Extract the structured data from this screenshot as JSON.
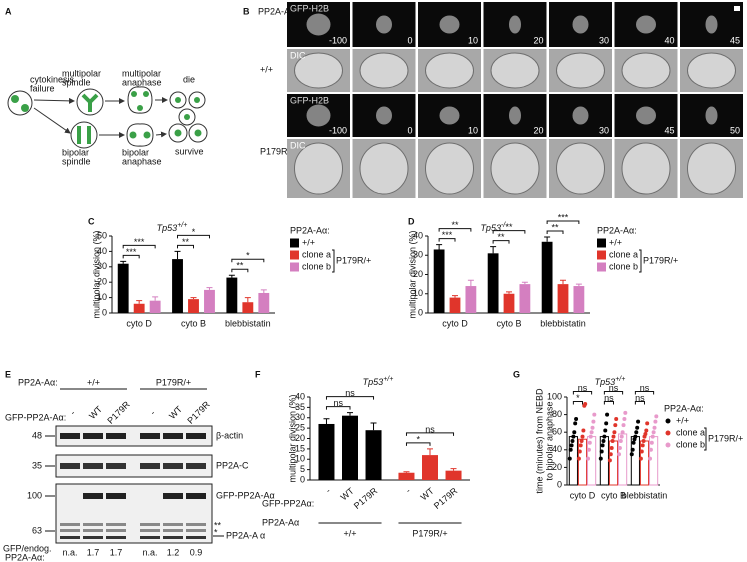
{
  "panel_labels": [
    "A",
    "B",
    "C",
    "D",
    "E",
    "F",
    "G"
  ],
  "diagram": {
    "nodes": [
      [
        "cytokinesis",
        "failure"
      ],
      [
        "multipolar",
        "spindle"
      ],
      [
        "multipolar",
        "anaphase"
      ],
      [
        "die"
      ],
      [
        "bipolar",
        "spindle"
      ],
      [
        "bipolar",
        "anaphase"
      ],
      [
        "survive"
      ]
    ]
  },
  "microscopy": {
    "genotype_title": "PP2A-Aα:",
    "channels": [
      "GFP-H2B",
      "DIC"
    ],
    "rows": [
      {
        "genotype": "+/+",
        "times": [
          -100,
          0,
          10,
          20,
          30,
          40,
          45
        ]
      },
      {
        "genotype": "P179R/+",
        "times": [
          -100,
          0,
          10,
          20,
          30,
          45,
          50
        ]
      }
    ]
  },
  "blot": {
    "genotype_title": "PP2A-Aα:",
    "genotypes": [
      "+/+",
      "P179R/+"
    ],
    "transgene_title": "GFP-PP2A-Aα:",
    "lanes": [
      "-",
      "WT",
      "P179R",
      "-",
      "WT",
      "P179R"
    ],
    "markers": [
      48,
      35,
      100,
      63
    ],
    "bands": [
      "β-actin",
      "PP2A-C",
      "GFP-PP2A-Aα",
      "PP2A-A α"
    ],
    "band_marks": [
      "**",
      "*"
    ],
    "ratio_title": [
      "GFP/endog.",
      "PP2A-Aα:"
    ],
    "ratios": [
      "n.a.",
      1.7,
      1.7,
      "n.a.",
      1.2,
      0.9
    ]
  },
  "chart_data": [
    {
      "type": "bar",
      "title": "Tp53",
      "title_superscript": "+/+",
      "ylabel": "multipolar division (%)",
      "categories": [
        "cyto D",
        "cyto B",
        "blebbistatin"
      ],
      "series": [
        {
          "name": "+/+",
          "color": "#000000",
          "values": [
            32,
            35,
            23
          ],
          "errors": [
            1.5,
            5,
            1.5
          ]
        },
        {
          "name": "clone a",
          "color": "#e0352b",
          "values": [
            6,
            9,
            7
          ],
          "errors": [
            2,
            1,
            3
          ]
        },
        {
          "name": "clone b",
          "color": "#d47fc0",
          "values": [
            8,
            15,
            13
          ],
          "errors": [
            2.5,
            1.5,
            2
          ]
        }
      ],
      "ylim": [
        0,
        50
      ],
      "yticks": [
        0,
        10,
        20,
        30,
        40,
        50
      ],
      "legend_title": "PP2A-Aα:",
      "legend_group": "P179R/+",
      "significance": [
        "***",
        "***",
        "**",
        "*",
        "**",
        "*"
      ]
    },
    {
      "type": "bar",
      "title": "Tp53",
      "title_superscript": "-/-",
      "ylabel": "multipolar division (%)",
      "categories": [
        "cyto D",
        "cyto B",
        "blebbistatin"
      ],
      "series": [
        {
          "name": "+/+",
          "color": "#000000",
          "values": [
            33,
            31,
            37
          ],
          "errors": [
            2.5,
            3.5,
            2.5
          ]
        },
        {
          "name": "clone a",
          "color": "#e0352b",
          "values": [
            8,
            10,
            15
          ],
          "errors": [
            1,
            1,
            2
          ]
        },
        {
          "name": "clone b",
          "color": "#d47fc0",
          "values": [
            14,
            15,
            14
          ],
          "errors": [
            3,
            1,
            1
          ]
        }
      ],
      "ylim": [
        0,
        40
      ],
      "yticks": [
        0,
        10,
        20,
        30,
        40
      ],
      "legend_title": "PP2A-Aα:",
      "legend_group": "P179R/+",
      "significance": [
        "***",
        "**",
        "**",
        "**",
        "**",
        "***"
      ]
    },
    {
      "type": "bar",
      "title": "Tp53",
      "title_superscript": "+/+",
      "ylabel": "multipolar division (%)",
      "categories": [
        "-",
        "WT",
        "P179R"
      ],
      "category_title": "GFP-PP2Aα:",
      "group_title": "PP2A-Aα",
      "series": [
        {
          "name": "+/+",
          "color": "#000000",
          "values": [
            27,
            31,
            24
          ],
          "errors": [
            2.5,
            1.5,
            3.5
          ]
        },
        {
          "name": "P179R/+",
          "color": "#e0352b",
          "values": [
            3.5,
            12,
            4.5
          ],
          "errors": [
            0.5,
            3,
            1
          ]
        }
      ],
      "ylim": [
        0,
        40
      ],
      "yticks": [
        0,
        5,
        10,
        15,
        20,
        25,
        30,
        35,
        40
      ],
      "significance": [
        "ns",
        "ns",
        "*",
        "ns"
      ]
    },
    {
      "type": "dotplot",
      "title": "Tp53",
      "title_superscript": "+/+",
      "ylabel": [
        "time (minutes) from NEBD",
        "to bipolar anaphase"
      ],
      "categories": [
        "cyto D",
        "cyto B",
        "blebbistatin"
      ],
      "series": [
        {
          "name": "+/+",
          "color": "#000000",
          "values": [
            55,
            55,
            55
          ],
          "points": [
            [
              30,
              40,
              45,
              50,
              55,
              60,
              70,
              75
            ],
            [
              30,
              38,
              45,
              50,
              55,
              62,
              70,
              80
            ],
            [
              35,
              40,
              48,
              52,
              55,
              60,
              65,
              72
            ]
          ]
        },
        {
          "name": "clone a",
          "color": "#e0352b",
          "values": [
            52,
            50,
            50
          ],
          "points": [
            [
              30,
              38,
              45,
              50,
              55,
              62,
              90,
              92
            ],
            [
              28,
              35,
              42,
              50,
              55,
              60,
              68,
              75
            ],
            [
              30,
              38,
              45,
              50,
              55,
              58,
              62,
              70
            ]
          ]
        },
        {
          "name": "clone b",
          "color": "#e89acb",
          "values": [
            55,
            58,
            55
          ],
          "points": [
            [
              30,
              40,
              48,
              55,
              60,
              65,
              72,
              80
            ],
            [
              35,
              42,
              50,
              55,
              60,
              68,
              75,
              82
            ],
            [
              30,
              40,
              48,
              55,
              60,
              65,
              72,
              78
            ]
          ]
        }
      ],
      "ylim": [
        0,
        100
      ],
      "yticks": [
        0,
        20,
        40,
        60,
        80,
        100
      ],
      "legend_title": "PP2A-Aα:",
      "legend_group": "P179R/+",
      "significance": [
        "*",
        "ns",
        "ns",
        "ns",
        "ns",
        "ns"
      ]
    }
  ]
}
